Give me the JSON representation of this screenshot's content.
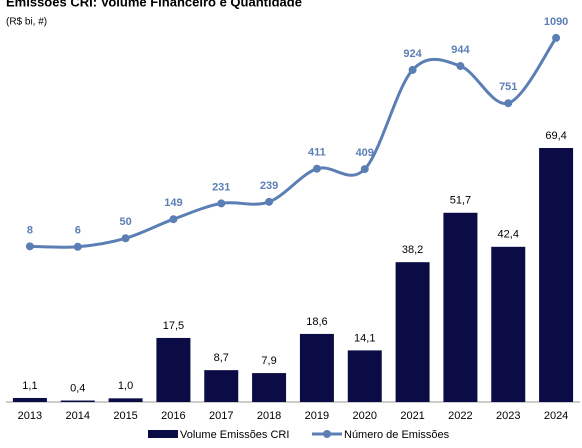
{
  "chart_data": {
    "type": "bar_line",
    "title": "Emissões CRI: Volume Financeiro e Quantidade",
    "subtitle": "(R$ bi, #)",
    "categories": [
      "2013",
      "2014",
      "2015",
      "2016",
      "2017",
      "2018",
      "2019",
      "2020",
      "2021",
      "2022",
      "2023",
      "2024"
    ],
    "series": [
      {
        "name": "Volume Emissões CRI",
        "color": "#0b0b45",
        "kind": "bar",
        "values": [
          1.1,
          0.4,
          1.0,
          17.5,
          8.7,
          7.9,
          18.6,
          14.1,
          38.2,
          51.7,
          42.4,
          69.4
        ],
        "value_labels": [
          "1,1",
          "0,4",
          "1,0",
          "17,5",
          "8,7",
          "7,9",
          "18,6",
          "14,1",
          "38,2",
          "51,7",
          "42,4",
          "69,4"
        ]
      },
      {
        "name": "Número de Emissões",
        "color": "#5b7fb5",
        "kind": "line",
        "axis": "y2",
        "values": [
          8,
          6,
          50,
          149,
          231,
          239,
          411,
          409,
          924,
          944,
          751,
          1090
        ]
      }
    ],
    "ylim": [
      0,
      100
    ],
    "y2lim": [
      -800,
      1100
    ],
    "legend": "bottom"
  }
}
